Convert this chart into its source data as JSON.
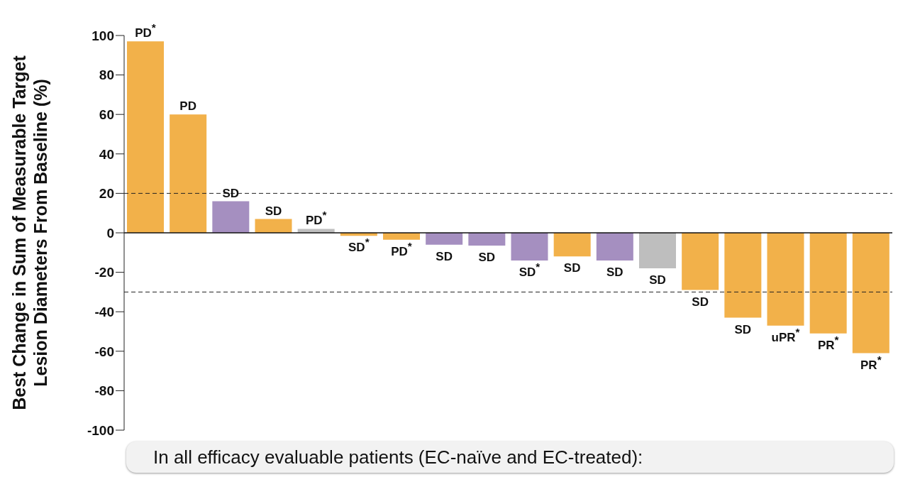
{
  "chart_data": {
    "type": "bar",
    "ylabel": "Best Change in Sum of Measurable Target\nLesion Diameters From Baseline (%)",
    "categories": [
      null,
      null,
      null,
      null,
      null,
      null,
      null,
      null,
      null,
      null,
      null,
      null,
      null,
      null,
      null,
      null,
      null,
      null
    ],
    "values": [
      97,
      60,
      16,
      7,
      2,
      -1.5,
      -3.5,
      -6,
      -6.5,
      -14,
      -12,
      -14,
      -18,
      -29,
      -43,
      -47,
      -51,
      -61
    ],
    "colors": [
      "#f2b14a",
      "#f2b14a",
      "#a58fc0",
      "#f2b14a",
      "#bebebe",
      "#f2b14a",
      "#f2b14a",
      "#a58fc0",
      "#a58fc0",
      "#a58fc0",
      "#f2b14a",
      "#a58fc0",
      "#bebebe",
      "#f2b14a",
      "#f2b14a",
      "#f2b14a",
      "#f2b14a",
      "#f2b14a"
    ],
    "value_labels": [
      "PD$^{*}$",
      "PD",
      "SD",
      "SD",
      "PD$^{*}$",
      "SD$^{*}$",
      "PD$^{*}$",
      "SD",
      "SD",
      "SD$^{*}$",
      "SD",
      "SD",
      "SD",
      "SD",
      "SD",
      "uPR$^{*}$",
      "PR$^{*}$",
      "PR$^{*}$"
    ],
    "ylim": [
      -100,
      100
    ],
    "yticks": [
      -100,
      -80,
      -60,
      -40,
      -20,
      0,
      20,
      40,
      60,
      80,
      100
    ],
    "ref_lines": [
      {
        "axis": "y",
        "value": 20,
        "line_style": "dashed"
      },
      {
        "axis": "y",
        "value": -30,
        "line_style": "dashed"
      }
    ],
    "annotations": [
      "In all efficacy evaluable patients (EC-naïve and EC-treated):"
    ]
  }
}
